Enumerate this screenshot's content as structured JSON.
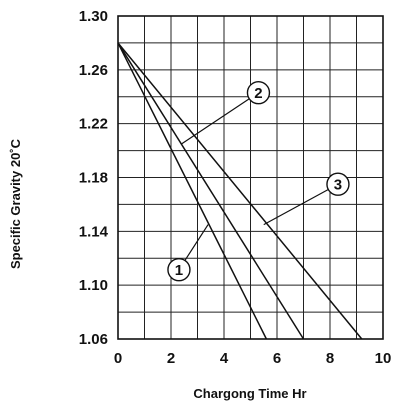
{
  "chart_data": {
    "type": "line",
    "title": "",
    "xlabel": "Chargong Time Hr",
    "ylabel": "Specific Gravity 20˚C",
    "xlim": [
      0,
      10
    ],
    "ylim": [
      1.06,
      1.3
    ],
    "grid": true,
    "x_ticks": [
      "0",
      "2",
      "4",
      "6",
      "8",
      "10"
    ],
    "y_ticks": [
      "1.30",
      "1.26",
      "1.22",
      "1.18",
      "1.14",
      "1.10",
      "1.06"
    ],
    "series": [
      {
        "name": "1",
        "x": [
          0,
          5.6
        ],
        "y": [
          1.28,
          1.06
        ]
      },
      {
        "name": "2",
        "x": [
          0,
          7.0
        ],
        "y": [
          1.28,
          1.06
        ]
      },
      {
        "name": "3",
        "x": [
          0,
          9.2
        ],
        "y": [
          1.28,
          1.06
        ]
      }
    ],
    "annotations": [
      {
        "label": "1",
        "target_x": 3.4,
        "target_y": 1.145,
        "circle_x": 2.3,
        "circle_y": 1.1115
      },
      {
        "label": "2",
        "target_x": 2.4,
        "target_y": 1.205,
        "circle_x": 5.3,
        "circle_y": 1.243
      },
      {
        "label": "3",
        "target_x": 5.5,
        "target_y": 1.145,
        "circle_x": 8.3,
        "circle_y": 1.175
      }
    ]
  }
}
